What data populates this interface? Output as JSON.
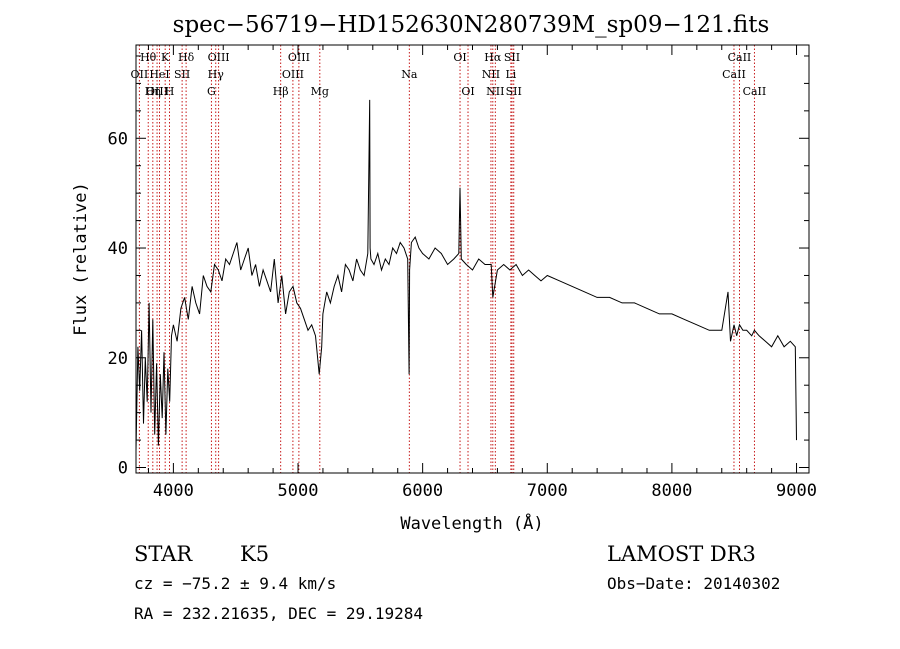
{
  "chart_data": {
    "type": "line",
    "title": "spec−56719−HD152630N280739M_sp09−121.fits",
    "xlabel": "Wavelength (Å)",
    "ylabel": "Flux (relative)",
    "xlim": [
      3700,
      9100
    ],
    "ylim": [
      -1,
      77
    ],
    "x_ticks": [
      4000,
      5000,
      6000,
      7000,
      8000,
      9000
    ],
    "x_tick_labels": [
      "4000",
      "5000",
      "6000",
      "7000",
      "8000",
      "9000"
    ],
    "y_ticks": [
      0,
      20,
      40,
      60
    ],
    "y_tick_labels": [
      "0",
      "20",
      "40",
      "60"
    ],
    "series": [
      {
        "name": "flux",
        "x": [
          3700,
          3715,
          3730,
          3745,
          3760,
          3775,
          3790,
          3805,
          3820,
          3835,
          3850,
          3865,
          3880,
          3895,
          3910,
          3925,
          3940,
          3955,
          3970,
          3985,
          4000,
          4030,
          4060,
          4090,
          4120,
          4150,
          4180,
          4210,
          4240,
          4270,
          4300,
          4330,
          4360,
          4390,
          4420,
          4450,
          4480,
          4510,
          4540,
          4570,
          4600,
          4630,
          4660,
          4690,
          4720,
          4750,
          4780,
          4810,
          4840,
          4870,
          4900,
          4930,
          4960,
          4990,
          5020,
          5050,
          5080,
          5110,
          5140,
          5170,
          5190,
          5200,
          5230,
          5260,
          5290,
          5320,
          5350,
          5380,
          5410,
          5440,
          5470,
          5500,
          5530,
          5560,
          5575,
          5578,
          5585,
          5610,
          5640,
          5670,
          5700,
          5730,
          5760,
          5790,
          5820,
          5850,
          5880,
          5891,
          5895,
          5910,
          5940,
          5970,
          6000,
          6050,
          6100,
          6150,
          6200,
          6250,
          6290,
          6300,
          6310,
          6350,
          6400,
          6450,
          6500,
          6550,
          6563,
          6600,
          6650,
          6700,
          6750,
          6800,
          6850,
          6900,
          6950,
          7000,
          7100,
          7200,
          7300,
          7400,
          7500,
          7600,
          7700,
          7800,
          7900,
          8000,
          8100,
          8200,
          8300,
          8400,
          8450,
          8470,
          8498,
          8520,
          8542,
          8570,
          8600,
          8640,
          8662,
          8700,
          8750,
          8800,
          8850,
          8900,
          8950,
          8990,
          9000
        ],
        "values": [
          3,
          22,
          14,
          25,
          8,
          20,
          12,
          30,
          10,
          27,
          6,
          19,
          4,
          17,
          9,
          21,
          6,
          18,
          12,
          24,
          26,
          23,
          29,
          31,
          27,
          33,
          30,
          28,
          35,
          33,
          32,
          37,
          36,
          34,
          38,
          37,
          39,
          41,
          36,
          38,
          40,
          35,
          37,
          33,
          36,
          34,
          32,
          38,
          30,
          35,
          28,
          32,
          33,
          30,
          29,
          27,
          25,
          26,
          24,
          17,
          22,
          28,
          32,
          30,
          33,
          35,
          32,
          37,
          36,
          34,
          38,
          36,
          35,
          39,
          67,
          40,
          38,
          37,
          39,
          36,
          38,
          37,
          40,
          39,
          41,
          40,
          38,
          17,
          36,
          41,
          42,
          40,
          39,
          38,
          40,
          39,
          37,
          38,
          39,
          51,
          38,
          37,
          36,
          38,
          37,
          37,
          31,
          36,
          37,
          36,
          37,
          35,
          36,
          35,
          34,
          35,
          34,
          33,
          32,
          31,
          31,
          30,
          30,
          29,
          28,
          28,
          27,
          26,
          25,
          25,
          32,
          23,
          26,
          24,
          26,
          25,
          25,
          24,
          25,
          24,
          23,
          22,
          24,
          22,
          23,
          22,
          5
        ]
      }
    ],
    "lines": [
      {
        "name": "OII",
        "x": 3727,
        "row": 1
      },
      {
        "name": "OIII",
        "x": 3869,
        "row": 2
      },
      {
        "name": "Hθ",
        "x": 3798,
        "row": 0
      },
      {
        "name": "K",
        "x": 3934,
        "row": 0
      },
      {
        "name": "HeI",
        "x": 3889,
        "row": 1
      },
      {
        "name": "SII",
        "x": 4070,
        "row": 1
      },
      {
        "name": "Hη",
        "x": 3835,
        "row": 2
      },
      {
        "name": "H",
        "x": 3969,
        "row": 2
      },
      {
        "name": "Hδ",
        "x": 4102,
        "row": 0
      },
      {
        "name": "OIII",
        "x": 4363,
        "row": 0
      },
      {
        "name": "Hγ",
        "x": 4340,
        "row": 1
      },
      {
        "name": "G",
        "x": 4305,
        "row": 2
      },
      {
        "name": "OIII",
        "x": 5007,
        "row": 0
      },
      {
        "name": "OIII",
        "x": 4959,
        "row": 1
      },
      {
        "name": "Hβ",
        "x": 4861,
        "row": 2
      },
      {
        "name": "Mg",
        "x": 5175,
        "row": 2
      },
      {
        "name": "Na",
        "x": 5893,
        "row": 1
      },
      {
        "name": "OI",
        "x": 6300,
        "row": 0
      },
      {
        "name": "OI",
        "x": 6364,
        "row": 2
      },
      {
        "name": "Hα",
        "x": 6563,
        "row": 0
      },
      {
        "name": "SII",
        "x": 6717,
        "row": 0
      },
      {
        "name": "NII",
        "x": 6548,
        "row": 1
      },
      {
        "name": "Li",
        "x": 6708,
        "row": 1
      },
      {
        "name": "NII",
        "x": 6583,
        "row": 2
      },
      {
        "name": "SII",
        "x": 6731,
        "row": 2
      },
      {
        "name": "CaII",
        "x": 8542,
        "row": 0
      },
      {
        "name": "CaII",
        "x": 8498,
        "row": 1
      },
      {
        "name": "CaII",
        "x": 8662,
        "row": 2
      }
    ]
  },
  "info": {
    "object_class": "STAR",
    "subclass": "K5",
    "survey": "LAMOST DR3",
    "cz": "cz = −75.2 ± 9.4 km/s",
    "obs_date": "Obs−Date: 20140302",
    "coords": "RA = 232.21635, DEC =  29.19284"
  },
  "colors": {
    "spectrum": "#000000",
    "line_marker": "#c00000",
    "axes": "#000000"
  }
}
